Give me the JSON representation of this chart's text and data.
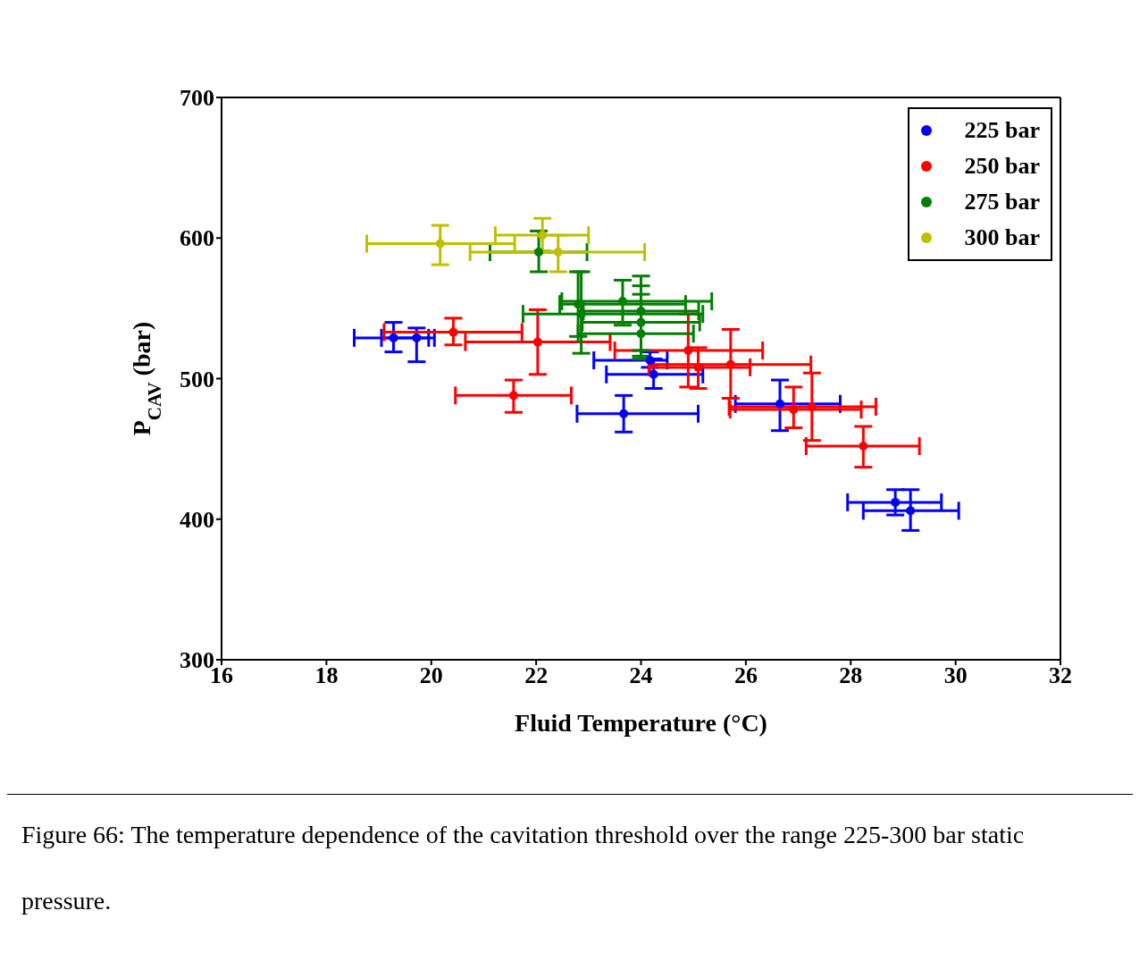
{
  "chart_data": {
    "type": "scatter",
    "xlabel": "Fluid Temperature (°C)",
    "ylabel": "P$_{CAV}$ (bar)",
    "xlim": [
      16,
      32
    ],
    "xticks": [
      16,
      18,
      20,
      22,
      24,
      26,
      28,
      30,
      32
    ],
    "ylim": [
      300,
      700
    ],
    "yticks": [
      300,
      400,
      500,
      600,
      700
    ],
    "legend": "top right",
    "marker": "circle",
    "annotations": [
      "Figure 66: The temperature dependence of the cavitation threshold over the range 225-300 bar static pressure."
    ],
    "series": [
      {
        "name": "225 bar",
        "color": "#0000ff",
        "x": [
          19.28,
          19.72,
          24.17,
          24.24,
          23.67,
          26.65,
          26.9,
          28.85,
          29.14
        ],
        "values": [
          529,
          529,
          513,
          503,
          475,
          482,
          null,
          412,
          406
        ],
        "xerrors": [
          [
            18.53,
            20.06
          ],
          [
            19.05,
            19.95
          ],
          [
            23.1,
            24.5
          ],
          [
            23.34,
            25.18
          ],
          [
            22.78,
            25.09
          ],
          [
            25.8,
            27.8
          ],
          null,
          [
            27.94,
            29.73
          ],
          [
            28.24,
            30.06
          ]
        ],
        "errors": [
          [
            519,
            540
          ],
          [
            512,
            536
          ],
          [
            508,
            519
          ],
          [
            493,
            514
          ],
          [
            462,
            488
          ],
          [
            463,
            499
          ],
          null,
          [
            403,
            421
          ],
          [
            392,
            421
          ]
        ]
      },
      {
        "name": "250 bar",
        "color": "#ff0000",
        "x": [
          20.42,
          22.03,
          21.57,
          24.9,
          25.09,
          25.71,
          26.91,
          27.26,
          28.24
        ],
        "values": [
          533,
          526,
          488,
          520,
          508,
          510,
          478,
          480,
          452
        ],
        "xerrors": [
          [
            19.1,
            21.73
          ],
          [
            20.65,
            23.41
          ],
          [
            20.46,
            22.67
          ],
          [
            23.5,
            26.32
          ],
          [
            24.15,
            26.08
          ],
          [
            24.17,
            27.24
          ],
          [
            25.7,
            28.2
          ],
          [
            25.68,
            28.48
          ],
          [
            27.15,
            29.31
          ]
        ],
        "errors": [
          [
            524,
            543
          ],
          [
            503,
            549
          ],
          [
            476,
            499
          ],
          [
            494,
            546
          ],
          [
            493,
            522
          ],
          [
            486,
            535
          ],
          [
            465,
            494
          ],
          [
            456,
            504
          ],
          [
            437,
            466
          ]
        ]
      },
      {
        "name": "275 bar",
        "color": "#007f00",
        "x": [
          22.05,
          22.8,
          22.86,
          23.65,
          24.0,
          24.0,
          24.0
        ],
        "values": [
          590,
          553,
          546,
          555,
          548,
          540,
          532
        ],
        "xerrors": [
          [
            21.12,
            22.97
          ],
          [
            22.45,
            24.85
          ],
          [
            21.75,
            25.18
          ],
          [
            22.49,
            25.35
          ],
          [
            22.9,
            25.1
          ],
          [
            22.88,
            25.12
          ],
          [
            22.8,
            25.0
          ]
        ],
        "errors": [
          [
            576,
            605
          ],
          [
            530,
            576
          ],
          [
            518,
            576
          ],
          [
            538,
            570
          ],
          [
            514,
            573
          ],
          [
            520,
            566
          ],
          [
            516,
            560
          ]
        ]
      },
      {
        "name": "300 bar",
        "color": "#bfbf00",
        "x": [
          20.17,
          22.12,
          22.42
        ],
        "values": [
          596,
          602,
          590
        ],
        "xerrors": [
          [
            18.77,
            21.59
          ],
          [
            21.22,
            23.0
          ],
          [
            20.74,
            24.07
          ]
        ],
        "errors": [
          [
            581,
            609
          ],
          [
            591,
            614
          ],
          [
            576,
            602
          ]
        ]
      }
    ]
  }
}
